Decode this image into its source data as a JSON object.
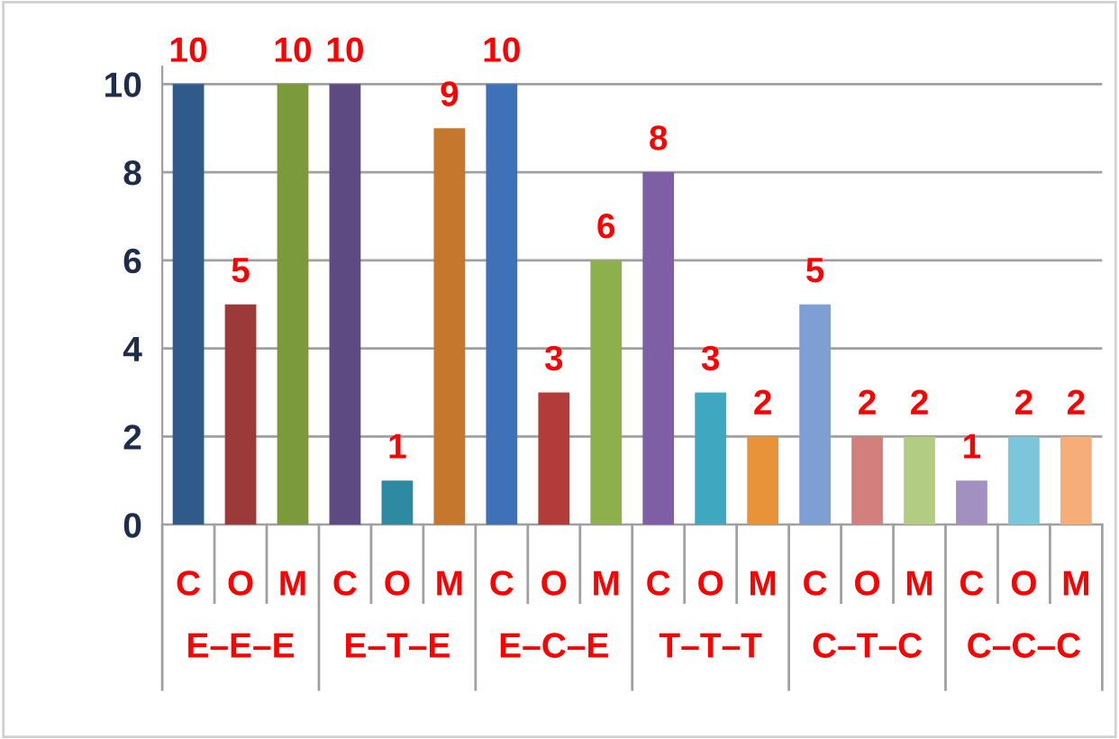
{
  "chart_data": {
    "type": "bar",
    "categories": [
      "C",
      "O",
      "M",
      "C",
      "O",
      "M",
      "C",
      "O",
      "M",
      "C",
      "O",
      "M",
      "C",
      "O",
      "M",
      "C",
      "O",
      "M"
    ],
    "values": [
      10,
      5,
      10,
      10,
      1,
      9,
      10,
      3,
      6,
      8,
      3,
      2,
      5,
      2,
      2,
      1,
      2,
      2
    ],
    "colors": [
      "#2f5a8a",
      "#9b3a38",
      "#7a9a3c",
      "#5e4a82",
      "#2e8aa0",
      "#c6772e",
      "#3e72b8",
      "#b23c3a",
      "#8db04c",
      "#7e5fa6",
      "#3fa8c0",
      "#e8923a",
      "#7d9fd4",
      "#d27f7d",
      "#b2cc82",
      "#a290c0",
      "#7cc6dc",
      "#f6ad78"
    ],
    "annotations": [
      "E–E–E",
      "E–T–E",
      "E–C–E",
      "T–T–T",
      "C–T–C",
      "C–C–C"
    ],
    "ylim": [
      0,
      10.4
    ],
    "yticks": [
      0,
      2,
      4,
      6,
      8,
      10
    ],
    "grid": "y",
    "data_labels": true,
    "legend": false
  }
}
